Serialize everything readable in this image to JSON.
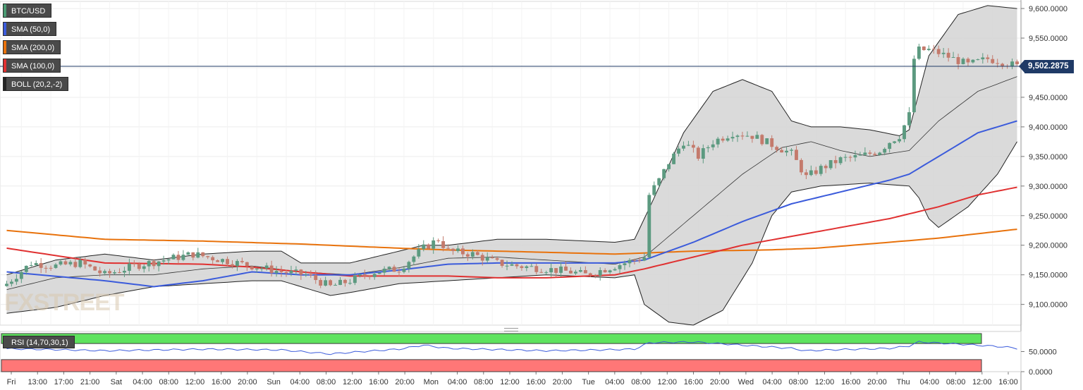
{
  "legend": {
    "pair": "BTC/USD",
    "sma50": "SMA (50,0)",
    "sma200": "SMA (200,0)",
    "sma100": "SMA (100,0)",
    "boll": "BOLL (20,2,-2)"
  },
  "rsi_label": "RSI (14,70,30,1)",
  "last_price_label": "9,502.2875",
  "watermark": "FXSTREET",
  "colors": {
    "up": "#5c9a80",
    "down": "#c47a6c",
    "sma50": "#3b5bdb",
    "sma100": "#e03131",
    "sma200": "#e8720c",
    "boll_fill": "#d4d4d4",
    "rsi_line": "#3b5bdb",
    "rsi_over": "#5ee35e",
    "rsi_under": "#ff7777",
    "price_line": "#1f3a66"
  },
  "chart_data": {
    "type": "candlestick",
    "symbol": "BTC/USD",
    "timeframe": "1h",
    "x_tick_labels": [
      "Fri",
      "13:00",
      "17:00",
      "21:00",
      "Sat",
      "04:00",
      "08:00",
      "12:00",
      "16:00",
      "20:00",
      "Sun",
      "04:00",
      "08:00",
      "12:00",
      "16:00",
      "20:00",
      "Mon",
      "04:00",
      "08:00",
      "12:00",
      "16:00",
      "20:00",
      "Tue",
      "04:00",
      "08:00",
      "12:00",
      "16:00",
      "20:00",
      "Wed",
      "04:00",
      "08:00",
      "12:00",
      "16:00",
      "20:00",
      "Thu",
      "04:00",
      "08:00",
      "12:00",
      "16:00"
    ],
    "y_ticks": [
      "9,600.0000",
      "9,550.0000",
      "9,500.0000",
      "9,450.0000",
      "9,400.0000",
      "9,350.0000",
      "9,300.0000",
      "9,250.0000",
      "9,200.0000",
      "9,150.0000",
      "9,100.0000"
    ],
    "y_tick_values": [
      9600,
      9550,
      9500,
      9450,
      9400,
      9350,
      9300,
      9250,
      9200,
      9150,
      9100
    ],
    "ylim": [
      9065,
      9612
    ],
    "last_price": 9502.2875,
    "key_closes": [
      [
        0,
        9135
      ],
      [
        5,
        9170
      ],
      [
        10,
        9165
      ],
      [
        15,
        9170
      ],
      [
        20,
        9150
      ],
      [
        26,
        9165
      ],
      [
        32,
        9175
      ],
      [
        38,
        9185
      ],
      [
        44,
        9175
      ],
      [
        50,
        9165
      ],
      [
        56,
        9155
      ],
      [
        61,
        9150
      ],
      [
        66,
        9130
      ],
      [
        70,
        9140
      ],
      [
        75,
        9155
      ],
      [
        80,
        9160
      ],
      [
        85,
        9195
      ],
      [
        88,
        9210
      ],
      [
        90,
        9190
      ],
      [
        95,
        9185
      ],
      [
        100,
        9170
      ],
      [
        104,
        9165
      ],
      [
        110,
        9160
      ],
      [
        115,
        9155
      ],
      [
        118,
        9150
      ],
      [
        124,
        9165
      ],
      [
        128,
        9175
      ],
      [
        130,
        9180
      ],
      [
        131,
        9285
      ],
      [
        133,
        9310
      ],
      [
        135,
        9340
      ],
      [
        138,
        9375
      ],
      [
        141,
        9350
      ],
      [
        144,
        9375
      ],
      [
        148,
        9390
      ],
      [
        152,
        9385
      ],
      [
        156,
        9370
      ],
      [
        160,
        9355
      ],
      [
        163,
        9315
      ],
      [
        166,
        9330
      ],
      [
        170,
        9345
      ],
      [
        174,
        9350
      ],
      [
        178,
        9360
      ],
      [
        180,
        9375
      ],
      [
        182,
        9385
      ],
      [
        184,
        9420
      ],
      [
        185,
        9515
      ],
      [
        186,
        9530
      ],
      [
        188,
        9530
      ],
      [
        190,
        9525
      ],
      [
        193,
        9515
      ],
      [
        196,
        9505
      ],
      [
        200,
        9515
      ],
      [
        203,
        9510
      ],
      [
        206,
        9502.3
      ]
    ],
    "sma50": [
      [
        0,
        9155
      ],
      [
        20,
        9140
      ],
      [
        30,
        9130
      ],
      [
        40,
        9140
      ],
      [
        50,
        9155
      ],
      [
        60,
        9150
      ],
      [
        70,
        9150
      ],
      [
        80,
        9158
      ],
      [
        90,
        9168
      ],
      [
        100,
        9170
      ],
      [
        110,
        9170
      ],
      [
        124,
        9170
      ],
      [
        130,
        9175
      ],
      [
        140,
        9205
      ],
      [
        150,
        9240
      ],
      [
        160,
        9270
      ],
      [
        170,
        9290
      ],
      [
        180,
        9310
      ],
      [
        184,
        9320
      ],
      [
        190,
        9350
      ],
      [
        198,
        9390
      ],
      [
        206,
        9410
      ]
    ],
    "sma100": [
      [
        0,
        9195
      ],
      [
        20,
        9170
      ],
      [
        40,
        9168
      ],
      [
        50,
        9163
      ],
      [
        60,
        9155
      ],
      [
        70,
        9148
      ],
      [
        80,
        9148
      ],
      [
        90,
        9148
      ],
      [
        100,
        9145
      ],
      [
        110,
        9145
      ],
      [
        124,
        9150
      ],
      [
        130,
        9160
      ],
      [
        140,
        9180
      ],
      [
        150,
        9200
      ],
      [
        160,
        9215
      ],
      [
        170,
        9230
      ],
      [
        180,
        9245
      ],
      [
        190,
        9265
      ],
      [
        198,
        9285
      ],
      [
        206,
        9298
      ]
    ],
    "sma200": [
      [
        0,
        9225
      ],
      [
        20,
        9210
      ],
      [
        40,
        9207
      ],
      [
        60,
        9202
      ],
      [
        80,
        9195
      ],
      [
        90,
        9192
      ],
      [
        100,
        9190
      ],
      [
        110,
        9188
      ],
      [
        124,
        9185
      ],
      [
        140,
        9190
      ],
      [
        155,
        9192
      ],
      [
        165,
        9195
      ],
      [
        180,
        9205
      ],
      [
        190,
        9212
      ],
      [
        206,
        9227
      ]
    ],
    "boll_upper": [
      [
        0,
        9150
      ],
      [
        10,
        9175
      ],
      [
        20,
        9185
      ],
      [
        30,
        9175
      ],
      [
        40,
        9185
      ],
      [
        50,
        9190
      ],
      [
        56,
        9190
      ],
      [
        60,
        9170
      ],
      [
        70,
        9170
      ],
      [
        80,
        9190
      ],
      [
        85,
        9200
      ],
      [
        90,
        9200
      ],
      [
        100,
        9210
      ],
      [
        110,
        9210
      ],
      [
        124,
        9205
      ],
      [
        128,
        9210
      ],
      [
        132,
        9280
      ],
      [
        138,
        9390
      ],
      [
        144,
        9460
      ],
      [
        150,
        9480
      ],
      [
        156,
        9460
      ],
      [
        160,
        9410
      ],
      [
        164,
        9400
      ],
      [
        170,
        9400
      ],
      [
        176,
        9395
      ],
      [
        182,
        9385
      ],
      [
        184,
        9395
      ],
      [
        188,
        9520
      ],
      [
        194,
        9590
      ],
      [
        200,
        9605
      ],
      [
        206,
        9600
      ]
    ],
    "boll_middle": [
      [
        0,
        9125
      ],
      [
        10,
        9145
      ],
      [
        20,
        9150
      ],
      [
        30,
        9150
      ],
      [
        40,
        9160
      ],
      [
        50,
        9165
      ],
      [
        60,
        9155
      ],
      [
        70,
        9150
      ],
      [
        80,
        9162
      ],
      [
        90,
        9178
      ],
      [
        100,
        9180
      ],
      [
        110,
        9175
      ],
      [
        124,
        9168
      ],
      [
        130,
        9180
      ],
      [
        140,
        9250
      ],
      [
        150,
        9320
      ],
      [
        158,
        9365
      ],
      [
        164,
        9375
      ],
      [
        170,
        9360
      ],
      [
        176,
        9350
      ],
      [
        184,
        9360
      ],
      [
        190,
        9410
      ],
      [
        198,
        9460
      ],
      [
        206,
        9485
      ]
    ],
    "boll_lower": [
      [
        0,
        9085
      ],
      [
        10,
        9095
      ],
      [
        20,
        9115
      ],
      [
        30,
        9130
      ],
      [
        40,
        9135
      ],
      [
        50,
        9140
      ],
      [
        56,
        9140
      ],
      [
        60,
        9130
      ],
      [
        66,
        9115
      ],
      [
        70,
        9120
      ],
      [
        80,
        9135
      ],
      [
        90,
        9140
      ],
      [
        100,
        9145
      ],
      [
        110,
        9150
      ],
      [
        124,
        9145
      ],
      [
        128,
        9150
      ],
      [
        130,
        9100
      ],
      [
        135,
        9070
      ],
      [
        140,
        9065
      ],
      [
        146,
        9090
      ],
      [
        152,
        9170
      ],
      [
        156,
        9250
      ],
      [
        160,
        9290
      ],
      [
        166,
        9300
      ],
      [
        176,
        9305
      ],
      [
        184,
        9300
      ],
      [
        186,
        9280
      ],
      [
        188,
        9245
      ],
      [
        190,
        9230
      ],
      [
        196,
        9265
      ],
      [
        202,
        9320
      ],
      [
        206,
        9375
      ]
    ],
    "rsi": {
      "label": "RSI (14,70,30,1)",
      "y_ticks": [
        "50.0000",
        "0.0000"
      ],
      "overbought": 70,
      "oversold": 30,
      "values": [
        [
          0,
          57
        ],
        [
          10,
          55
        ],
        [
          20,
          52
        ],
        [
          30,
          54
        ],
        [
          40,
          56
        ],
        [
          50,
          55
        ],
        [
          56,
          54
        ],
        [
          60,
          50
        ],
        [
          66,
          44
        ],
        [
          70,
          48
        ],
        [
          80,
          56
        ],
        [
          85,
          66
        ],
        [
          90,
          58
        ],
        [
          100,
          55
        ],
        [
          110,
          52
        ],
        [
          120,
          54
        ],
        [
          128,
          56
        ],
        [
          131,
          72
        ],
        [
          140,
          74
        ],
        [
          150,
          66
        ],
        [
          160,
          58
        ],
        [
          163,
          52
        ],
        [
          170,
          55
        ],
        [
          180,
          58
        ],
        [
          184,
          64
        ],
        [
          186,
          74
        ],
        [
          195,
          68
        ],
        [
          203,
          62
        ],
        [
          206,
          58
        ]
      ]
    }
  }
}
